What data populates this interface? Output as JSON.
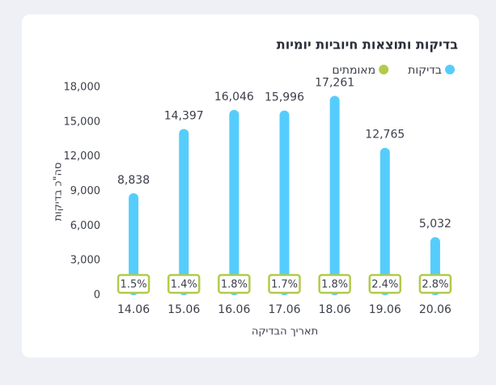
{
  "chart_data": {
    "type": "bar",
    "title": "בדיקות ותוצאות חיוביות יומיות",
    "xlabel": "תאריך הבדיקה",
    "ylabel": "סה\"כ בדיקות",
    "categories": [
      "14.06",
      "15.06",
      "16.06",
      "17.06",
      "18.06",
      "19.06",
      "20.06"
    ],
    "series": [
      {
        "name": "בדיקות",
        "color": "#55cdfc",
        "values": [
          8838,
          14397,
          16046,
          15996,
          17261,
          12765,
          5032
        ],
        "value_labels": [
          "8,838",
          "14,397",
          "16,046",
          "15,996",
          "17,261",
          "12,765",
          "5,032"
        ]
      },
      {
        "name": "מאומתים",
        "color": "#b1cb4a",
        "values": [
          1.5,
          1.4,
          1.8,
          1.7,
          1.8,
          2.4,
          2.8
        ],
        "value_labels": [
          "1.5%",
          "1.4%",
          "1.8%",
          "1.7%",
          "1.8%",
          "2.4%",
          "2.8%"
        ]
      }
    ],
    "ylim": [
      0,
      18000
    ],
    "yticks": [
      0,
      {
        "value": 3000,
        "label": "3,000"
      },
      {
        "value": 6000,
        "label": "6,000"
      },
      {
        "value": 9000,
        "label": "9,000"
      },
      {
        "value": 12000,
        "label": "12,000"
      },
      {
        "value": 15000,
        "label": "15,000"
      },
      {
        "value": 18000,
        "label": "18,000"
      }
    ],
    "grid": false,
    "legend": "top-right"
  }
}
